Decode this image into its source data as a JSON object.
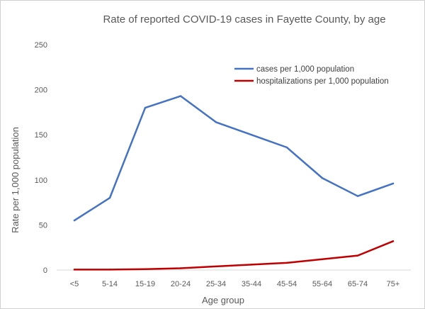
{
  "chart_data": {
    "type": "line",
    "title": "Rate of reported COVID-19 cases in Fayette County, by age",
    "xlabel": "Age group",
    "ylabel": "Rate per 1,000 population",
    "categories": [
      "<5",
      "5-14",
      "15-19",
      "20-24",
      "25-34",
      "35-44",
      "45-54",
      "55-64",
      "65-74",
      "75+"
    ],
    "ylim": [
      0,
      250
    ],
    "yticks": [
      0,
      50,
      100,
      150,
      200,
      250
    ],
    "grid": false,
    "legend_position": "top-right",
    "series": [
      {
        "name": "cases per 1,000 population",
        "color": "#4472c4",
        "values": [
          55,
          80,
          180,
          193,
          164,
          150,
          136,
          102,
          82,
          96
        ]
      },
      {
        "name": "hospitalizations per 1,000 population",
        "color": "#c00000",
        "values": [
          0.5,
          0.5,
          1,
          2,
          4,
          6,
          8,
          12,
          16,
          32
        ]
      }
    ]
  }
}
